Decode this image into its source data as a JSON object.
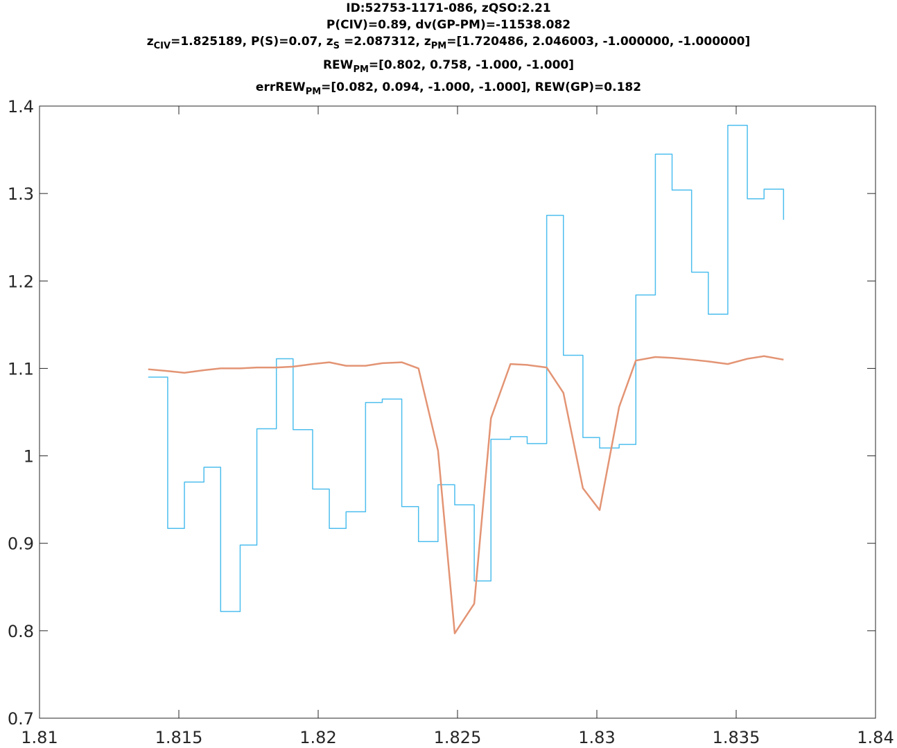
{
  "title": {
    "line1": "ID:52753-1171-086, zQSO:2.21",
    "line2": "P(CIV)=0.89, dv(GP-PM)=-11538.082",
    "line3": {
      "p1": "z",
      "s1": "CIV",
      "p2": "=1.825189, P(S)=0.07, z",
      "s2": "S",
      "p3": " =2.087312, z",
      "s3": "PM",
      "p4": "=[1.720486, 2.046003, -1.000000, -1.000000]"
    },
    "line4": {
      "p1": "REW",
      "s1": "PM",
      "p2": "=[0.802, 0.758, -1.000, -1.000]"
    },
    "line5": {
      "p1": "errREW",
      "s1": "PM",
      "p2": "=[0.082, 0.094, -1.000, -1.000], REW(GP)=0.182"
    }
  },
  "chart_data": {
    "type": "line",
    "xlim": [
      1.81,
      1.84
    ],
    "ylim": [
      0.7,
      1.4
    ],
    "xticks": [
      1.81,
      1.815,
      1.82,
      1.825,
      1.83,
      1.835,
      1.84
    ],
    "xtick_labels": [
      "1.81",
      "1.815",
      "1.82",
      "1.825",
      "1.83",
      "1.835",
      "1.84"
    ],
    "yticks": [
      0.7,
      0.8,
      0.9,
      1.0,
      1.1,
      1.2,
      1.3,
      1.4
    ],
    "ytick_labels": [
      "0.7",
      "0.8",
      "0.9",
      "1",
      "1.1",
      "1.2",
      "1.3",
      "1.4"
    ],
    "grid": false,
    "series": [
      {
        "style": "stairs",
        "color": "#4DBEEE",
        "x": [
          1.8139,
          1.8146,
          1.8152,
          1.8159,
          1.8165,
          1.8172,
          1.8178,
          1.8185,
          1.8191,
          1.8198,
          1.8204,
          1.821,
          1.8217,
          1.8223,
          1.823,
          1.8236,
          1.8243,
          1.8249,
          1.8256,
          1.8262,
          1.8269,
          1.8275,
          1.8282,
          1.8288,
          1.8295,
          1.8301,
          1.8308,
          1.8314,
          1.8321,
          1.8327,
          1.8334,
          1.834,
          1.8347,
          1.8354,
          1.836,
          1.8367
        ],
        "y": [
          1.09,
          0.917,
          0.97,
          0.987,
          0.822,
          0.898,
          1.031,
          1.111,
          1.03,
          0.962,
          0.917,
          0.936,
          1.061,
          1.065,
          0.942,
          0.902,
          0.967,
          0.944,
          0.857,
          1.019,
          1.022,
          1.014,
          1.275,
          1.115,
          1.021,
          1.009,
          1.013,
          1.184,
          1.345,
          1.304,
          1.21,
          1.162,
          1.378,
          1.294,
          1.305,
          1.27
        ]
      },
      {
        "style": "line",
        "color": "#E39474",
        "x": [
          1.8139,
          1.8146,
          1.8152,
          1.8159,
          1.8165,
          1.8172,
          1.8178,
          1.8185,
          1.8191,
          1.8198,
          1.8204,
          1.821,
          1.8217,
          1.8223,
          1.823,
          1.8236,
          1.8243,
          1.8249,
          1.8256,
          1.8262,
          1.8269,
          1.8275,
          1.8282,
          1.8288,
          1.8295,
          1.8301,
          1.8308,
          1.8314,
          1.8321,
          1.8327,
          1.8334,
          1.834,
          1.8347,
          1.8354,
          1.836,
          1.8367
        ],
        "y": [
          1.099,
          1.097,
          1.095,
          1.098,
          1.1,
          1.1,
          1.101,
          1.101,
          1.102,
          1.105,
          1.107,
          1.103,
          1.103,
          1.106,
          1.107,
          1.1,
          1.006,
          0.797,
          0.831,
          1.043,
          1.105,
          1.104,
          1.101,
          1.072,
          0.963,
          0.938,
          1.056,
          1.109,
          1.113,
          1.112,
          1.11,
          1.108,
          1.105,
          1.111,
          1.114,
          1.11
        ]
      }
    ]
  }
}
